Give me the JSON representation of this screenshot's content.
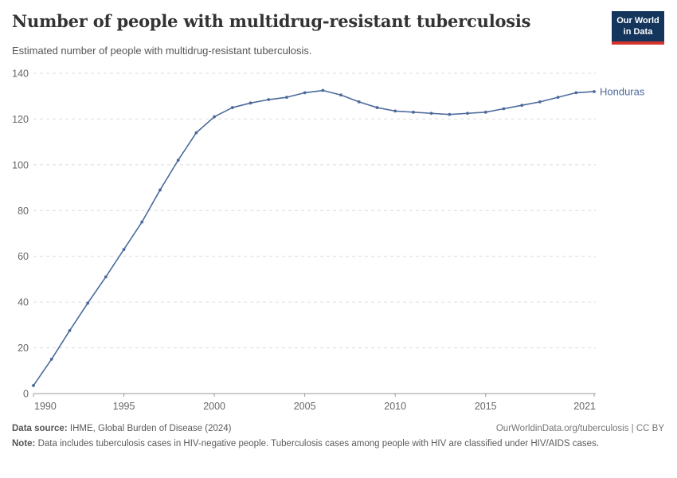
{
  "header": {
    "title": "Number of people with multidrug-resistant tuberculosis",
    "subtitle": "Estimated number of people with multidrug-resistant tuberculosis.",
    "logo": {
      "line1": "Our World",
      "line2": "in Data"
    }
  },
  "chart_data": {
    "type": "line",
    "title": "Number of people with multidrug-resistant tuberculosis",
    "xlabel": "",
    "ylabel": "",
    "x": [
      1990,
      1991,
      1992,
      1993,
      1994,
      1995,
      1996,
      1997,
      1998,
      1999,
      2000,
      2001,
      2002,
      2003,
      2004,
      2005,
      2006,
      2007,
      2008,
      2009,
      2010,
      2011,
      2012,
      2013,
      2014,
      2015,
      2016,
      2017,
      2018,
      2019,
      2020,
      2021
    ],
    "series": [
      {
        "name": "Honduras",
        "color": "#4c6a9c",
        "values": [
          3.5,
          15,
          27.5,
          39.5,
          51,
          63,
          75,
          89,
          102,
          114,
          121,
          125,
          127,
          128.5,
          129.5,
          131.5,
          132.5,
          130.5,
          127.5,
          125,
          123.5,
          123,
          122.5,
          122,
          122.5,
          123,
          124.5,
          126,
          127.5,
          129.5,
          131.5,
          132
        ]
      }
    ],
    "ylim": [
      0,
      140
    ],
    "xlim": [
      1990,
      2021
    ],
    "yticks": [
      0,
      20,
      40,
      60,
      80,
      100,
      120,
      140
    ],
    "xticks": [
      1990,
      1995,
      2000,
      2005,
      2010,
      2015,
      2021
    ],
    "grid": "horizontal-dashed",
    "legend": "line-end-label"
  },
  "footer": {
    "data_source_label": "Data source:",
    "data_source_value": "IHME, Global Burden of Disease (2024)",
    "link": "OurWorldinData.org/tuberculosis | CC BY",
    "note_label": "Note:",
    "note_value": "Data includes tuberculosis cases in HIV-negative people. Tuberculosis cases among people with HIV are classified under HIV/AIDS cases."
  },
  "colors": {
    "line": "#4c6a9c",
    "grid": "#dcdcdc",
    "axis": "#999999",
    "tick_label": "#666666",
    "title": "#333333",
    "subtitle": "#555555",
    "footer_text": "#5b5b5b",
    "logo_bg": "#14365c",
    "logo_red": "#d4342c"
  }
}
